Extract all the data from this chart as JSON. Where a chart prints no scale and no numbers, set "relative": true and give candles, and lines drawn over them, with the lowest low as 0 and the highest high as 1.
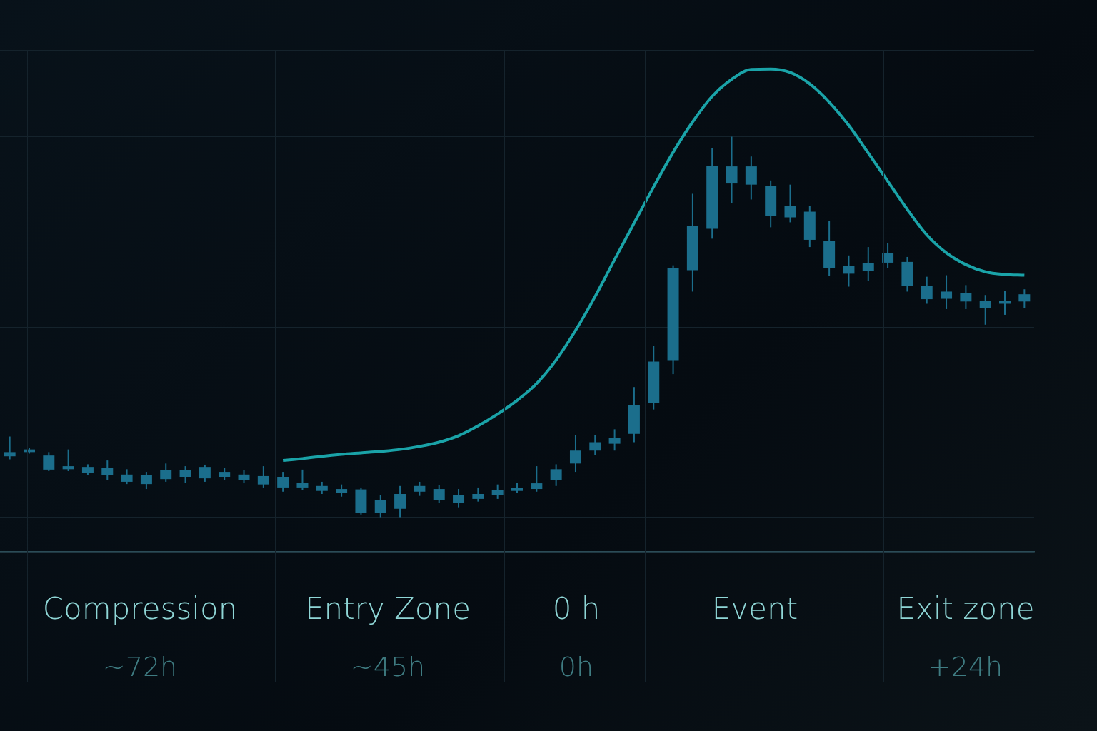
{
  "chart_data": {
    "type": "candlestick",
    "relative": true,
    "grid": "y",
    "color": "#1b6e8c",
    "categories": [
      null,
      null,
      null,
      null,
      null,
      null,
      null,
      null,
      null,
      null,
      null,
      null,
      null,
      null,
      null,
      null,
      null,
      null,
      null,
      null,
      null,
      null,
      null,
      null,
      null,
      null,
      null,
      null,
      null,
      null,
      null,
      null,
      null,
      null,
      null,
      null,
      null,
      null,
      null,
      null,
      null,
      null,
      null,
      null,
      null,
      null,
      null,
      null,
      null,
      null,
      null,
      null,
      null
    ],
    "ohlc": [
      [
        0.16,
        0.212,
        0.152,
        0.171
      ],
      [
        0.171,
        0.182,
        0.167,
        0.178
      ],
      [
        0.125,
        0.171,
        0.121,
        0.162
      ],
      [
        0.126,
        0.178,
        0.121,
        0.134
      ],
      [
        0.117,
        0.139,
        0.11,
        0.132
      ],
      [
        0.11,
        0.149,
        0.097,
        0.13
      ],
      [
        0.093,
        0.126,
        0.087,
        0.112
      ],
      [
        0.087,
        0.119,
        0.074,
        0.11
      ],
      [
        0.1,
        0.141,
        0.093,
        0.123
      ],
      [
        0.106,
        0.134,
        0.091,
        0.123
      ],
      [
        0.102,
        0.138,
        0.093,
        0.132
      ],
      [
        0.106,
        0.13,
        0.097,
        0.119
      ],
      [
        0.097,
        0.123,
        0.089,
        0.112
      ],
      [
        0.086,
        0.134,
        0.078,
        0.108
      ],
      [
        0.078,
        0.119,
        0.067,
        0.106
      ],
      [
        0.078,
        0.125,
        0.071,
        0.091
      ],
      [
        0.069,
        0.093,
        0.061,
        0.082
      ],
      [
        0.063,
        0.086,
        0.054,
        0.074
      ],
      [
        0.011,
        0.078,
        0.007,
        0.073
      ],
      [
        0.011,
        0.059,
        0,
        0.046
      ],
      [
        0.022,
        0.082,
        0,
        0.061
      ],
      [
        0.067,
        0.093,
        0.056,
        0.082
      ],
      [
        0.045,
        0.084,
        0.037,
        0.074
      ],
      [
        0.037,
        0.074,
        0.026,
        0.059
      ],
      [
        0.048,
        0.078,
        0.041,
        0.061
      ],
      [
        0.059,
        0.086,
        0.048,
        0.071
      ],
      [
        0.069,
        0.089,
        0.063,
        0.076
      ],
      [
        0.074,
        0.134,
        0.067,
        0.089
      ],
      [
        0.097,
        0.139,
        0.082,
        0.126
      ],
      [
        0.141,
        0.216,
        0.119,
        0.175
      ],
      [
        0.175,
        0.216,
        0.164,
        0.197
      ],
      [
        0.193,
        0.231,
        0.175,
        0.208
      ],
      [
        0.219,
        0.342,
        0.197,
        0.294
      ],
      [
        0.301,
        0.45,
        0.283,
        0.409
      ],
      [
        0.413,
        0.662,
        0.376,
        0.654
      ],
      [
        0.649,
        0.85,
        0.593,
        0.766
      ],
      [
        0.758,
        0.97,
        0.732,
        0.922
      ],
      [
        0.877,
        1,
        0.825,
        0.922
      ],
      [
        0.874,
        0.948,
        0.835,
        0.922
      ],
      [
        0.792,
        0.885,
        0.762,
        0.87
      ],
      [
        0.788,
        0.874,
        0.775,
        0.818
      ],
      [
        0.729,
        0.818,
        0.71,
        0.803
      ],
      [
        0.654,
        0.779,
        0.634,
        0.727
      ],
      [
        0.64,
        0.688,
        0.606,
        0.66
      ],
      [
        0.647,
        0.71,
        0.621,
        0.667
      ],
      [
        0.669,
        0.721,
        0.654,
        0.695
      ],
      [
        0.608,
        0.684,
        0.593,
        0.671
      ],
      [
        0.573,
        0.632,
        0.561,
        0.608
      ],
      [
        0.574,
        0.636,
        0.547,
        0.593
      ],
      [
        0.567,
        0.61,
        0.547,
        0.589
      ],
      [
        0.55,
        0.584,
        0.506,
        0.569
      ],
      [
        0.561,
        0.595,
        0.532,
        0.569
      ],
      [
        0.567,
        0.599,
        0.55,
        0.586
      ]
    ],
    "series": [
      {
        "type": "line",
        "color": "#1aa3a8",
        "values": [
          null,
          null,
          null,
          null,
          null,
          null,
          null,
          null,
          null,
          null,
          null,
          null,
          null,
          null,
          0.149,
          0.154,
          0.16,
          0.165,
          0.169,
          0.173,
          0.178,
          0.186,
          0.197,
          0.214,
          0.24,
          0.271,
          0.307,
          0.351,
          0.413,
          0.491,
          0.58,
          0.677,
          0.773,
          0.868,
          0.959,
          1.039,
          1.106,
          1.151,
          1.177,
          1.178,
          1.169,
          1.139,
          1.091,
          1.03,
          0.957,
          0.883,
          0.809,
          0.742,
          0.695,
          0.664,
          0.645,
          0.638,
          0.636
        ]
      }
    ],
    "annotations": [
      "Compression",
      "~72h",
      "Entry Zone",
      "~45h",
      "0 h",
      "0h",
      "Event",
      "Exit zone",
      "+24h"
    ]
  }
}
